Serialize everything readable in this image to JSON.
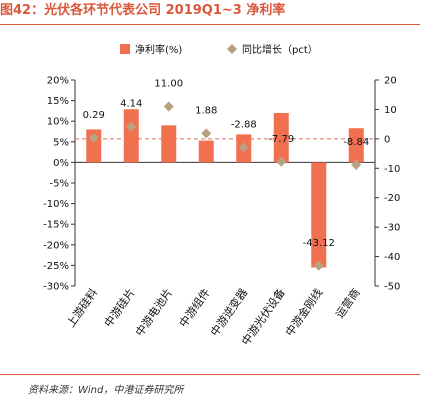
{
  "header": {
    "title": "图42：光伏各环节代表公司 2019Q1~3 净利率"
  },
  "footer": {
    "source": "资料来源：Wind，中港证券研究所"
  },
  "chart_data": {
    "type": "bar",
    "categories": [
      "上游硅料",
      "中游硅片",
      "中游电池片",
      "中游组件",
      "中游逆变器",
      "中游光伏设备",
      "中游金刚线",
      "运营商"
    ],
    "series": [
      {
        "name": "净利率(%)",
        "type": "bar",
        "axis": "left",
        "color": "#f07050",
        "values": [
          8.0,
          12.9,
          9.0,
          5.3,
          6.8,
          12.0,
          -25.5,
          8.3
        ]
      },
      {
        "name": "同比增长（pct）",
        "type": "scatter",
        "axis": "right",
        "color": "#b9a282",
        "values": [
          0.29,
          4.14,
          11.0,
          1.88,
          -2.88,
          -7.79,
          -43.12,
          -8.84
        ],
        "labels": [
          "0.29",
          "4.14",
          "11.00",
          "1.88",
          "-2.88",
          "-7.79",
          "-43.12",
          "-8.84"
        ]
      }
    ],
    "y_left": {
      "min": -30,
      "max": 20,
      "step": 5,
      "suffix": "%"
    },
    "y_right": {
      "min": -50,
      "max": 20,
      "step": 10
    },
    "legend": "top-center"
  }
}
